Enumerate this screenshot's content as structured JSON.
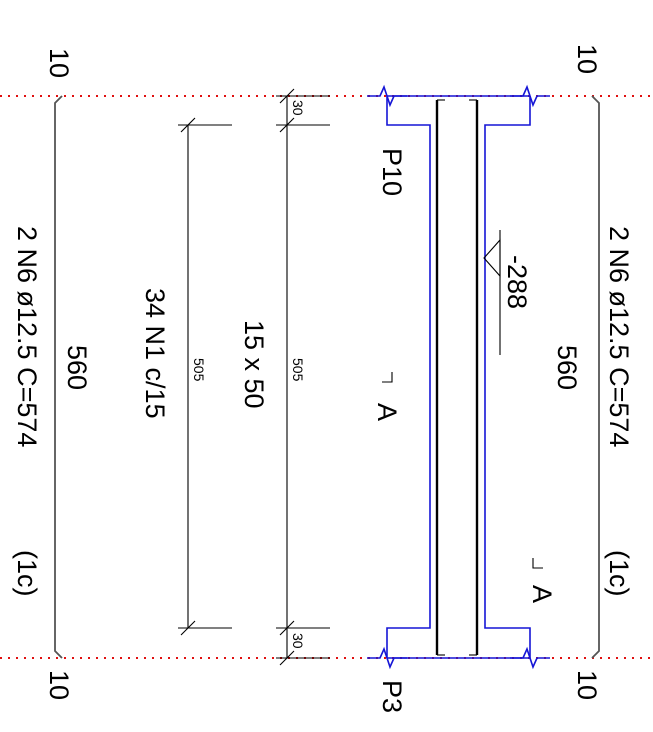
{
  "colors": {
    "outline": "#1515d6",
    "axis": "#e01010",
    "line": "#000000",
    "rebar": "#555555"
  },
  "dims": {
    "top_left": "10",
    "top_right": "10",
    "bottom_left": "10",
    "bottom_right": "10",
    "seg_start": "30",
    "seg_end": "30",
    "len_stirrups": "505",
    "len_stirrup_zone": "505"
  },
  "labels": {
    "rebar_top_desc": "2 N6 ø12.5 C=574",
    "rebar_top_layer": "(1c)",
    "rebar_top_len": "560",
    "rebar_bot_desc": "2 N6 ø12.5 C=574",
    "rebar_bot_layer": "(1c)",
    "rebar_bot_len": "560",
    "level": "-288",
    "section_left": "A",
    "section_right": "A",
    "pillar_start": "P10",
    "pillar_end": "P3",
    "stirrup_count": "15 x 50",
    "stirrups": "34 N1 c/15"
  }
}
